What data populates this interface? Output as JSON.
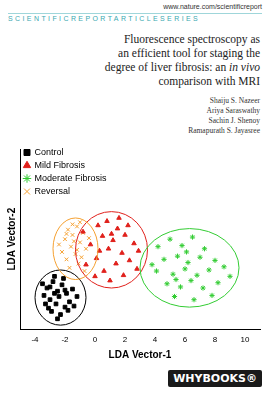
{
  "header": {
    "url": "www.nature.com/scientificreport",
    "series": "SCIENTIFICREPORTARTICLESERIES"
  },
  "title_lines": [
    [
      {
        "text": "Fluorescence spectroscopy as"
      }
    ],
    [
      {
        "text": "an efficient tool for staging the"
      }
    ],
    [
      {
        "text": "degree of liver fibrosis: an "
      },
      {
        "text": "in vivo",
        "italic": true
      }
    ],
    [
      {
        "text": "comparison with MRI"
      }
    ]
  ],
  "authors": [
    "Shaiju S. Nazeer",
    "Ariya Saraswathy",
    "Sachin J. Shenoy",
    "Ramapurath S. Jayasree"
  ],
  "publisher": "WHYBOOKS®",
  "chart_data": {
    "type": "scatter",
    "x_label": "LDA Vector-1",
    "y_label": "LDA Vector-2",
    "xlim": [
      -5,
      11
    ],
    "xticks": [
      -4,
      -2,
      0,
      2,
      4,
      6,
      8,
      10
    ],
    "ylim": [
      -7,
      10
    ],
    "tick_labels": "x",
    "grid": false,
    "legend": "upper left",
    "series": [
      {
        "name": "Control",
        "color": "#000000",
        "marker": "square",
        "ellipse": {
          "center": [
            -2.3,
            -4.0
          ],
          "radii": [
            1.7,
            2.6
          ]
        },
        "x": [
          -3.2,
          -2.8,
          -2.5,
          -3.0,
          -2.2,
          -1.9,
          -2.6,
          -3.4,
          -2.0,
          -1.5,
          -2.9,
          -2.3,
          -1.7,
          -3.5,
          -2.7,
          -1.2,
          -2.1,
          -3.1,
          -2.4,
          -1.8,
          -3.3,
          -2.7,
          -1.4,
          -2.0,
          -2.5,
          -3.0
        ],
        "values": [
          -3.1,
          -2.5,
          -3.4,
          -4.2,
          -2.8,
          -3.6,
          -4.6,
          -3.8,
          -4.9,
          -3.2,
          -5.3,
          -5.6,
          -4.4,
          -2.7,
          -2.0,
          -3.9,
          -2.2,
          -5.0,
          -3.9,
          -5.2,
          -4.6,
          -3.6,
          -4.8,
          -3.3,
          -6.0,
          -3.0
        ]
      },
      {
        "name": "Mild Fibrosis",
        "color": "#e0201b",
        "marker": "triangle",
        "ellipse": {
          "center": [
            1.1,
            0.5
          ],
          "radii": [
            2.4,
            3.6
          ]
        },
        "x": [
          0.2,
          0.8,
          1.5,
          0.5,
          1.2,
          2.0,
          -0.3,
          0.9,
          1.8,
          2.6,
          0.1,
          1.4,
          2.3,
          0.6,
          1.9,
          -0.6,
          1.0,
          2.8,
          0.3,
          1.6,
          2.2,
          -0.8,
          1.1,
          0.0,
          2.9
        ],
        "values": [
          2.8,
          3.2,
          2.5,
          1.8,
          1.4,
          1.9,
          1.0,
          0.6,
          0.2,
          1.1,
          -0.3,
          -0.8,
          -0.5,
          -1.5,
          -1.9,
          -0.9,
          -2.4,
          -1.3,
          0.4,
          3.5,
          2.8,
          2.2,
          2.0,
          -2.0,
          0.4
        ]
      },
      {
        "name": "Moderate Fibrosis",
        "color": "#33cc33",
        "marker": "star",
        "ellipse": {
          "center": [
            6.3,
            -1.2
          ],
          "radii": [
            3.3,
            3.7
          ]
        },
        "x": [
          4.2,
          5.0,
          5.8,
          6.5,
          7.3,
          4.6,
          5.5,
          6.2,
          7.0,
          8.0,
          4.1,
          5.2,
          6.0,
          6.8,
          7.6,
          8.6,
          4.8,
          5.7,
          6.4,
          7.2,
          8.2,
          5.3,
          6.6,
          7.8,
          9.0,
          3.8,
          6.1,
          5.4
        ],
        "values": [
          0.8,
          1.5,
          0.9,
          1.7,
          0.6,
          -0.4,
          -0.1,
          -0.7,
          -0.2,
          -0.5,
          -1.5,
          -1.8,
          -1.3,
          -1.9,
          -1.4,
          -1.1,
          -2.7,
          -3.0,
          -2.4,
          -3.1,
          -2.6,
          -3.9,
          -4.2,
          -3.8,
          -2.0,
          -0.9,
          0.3,
          -2.3
        ]
      },
      {
        "name": "Reversal",
        "color": "#f5a030",
        "marker": "x",
        "ellipse": {
          "center": [
            -1.3,
            0.6
          ],
          "radii": [
            1.5,
            2.9
          ]
        },
        "x": [
          -1.8,
          -1.5,
          -1.2,
          -2.0,
          -1.0,
          -1.6,
          -0.8,
          -2.2,
          -1.3,
          -0.6,
          -1.9,
          -1.1,
          -0.4,
          -1.7,
          -0.9,
          -2.4,
          -1.4,
          -0.7,
          -1.5,
          -1.0,
          -1.9,
          -1.2
        ],
        "values": [
          2.4,
          1.9,
          2.7,
          1.5,
          1.2,
          0.8,
          2.1,
          0.3,
          0.1,
          0.6,
          -0.4,
          -0.8,
          1.6,
          -1.2,
          -0.2,
          1.0,
          1.3,
          -1.5,
          2.9,
          3.1,
          2.0,
          0.5
        ]
      }
    ]
  }
}
